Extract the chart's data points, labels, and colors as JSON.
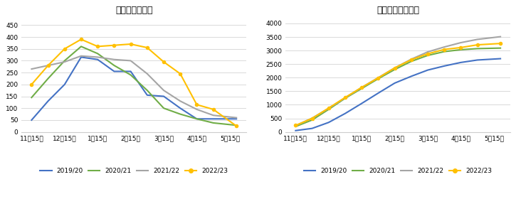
{
  "title1": "印度月度产糖量",
  "title2": "印度累计产糖进度",
  "x_labels": [
    "11月15日",
    "12月15日",
    "1月15日",
    "2月15日",
    "3月15日",
    "4月15日",
    "5月15日"
  ],
  "monthly_data": {
    "2019/20": {
      "x": [
        0,
        0.5,
        1,
        1.5,
        2,
        2.5,
        3,
        3.5,
        4,
        4.5,
        5,
        5.5,
        6.2
      ],
      "y": [
        50,
        130,
        200,
        315,
        305,
        255,
        255,
        155,
        150,
        100,
        55,
        55,
        55
      ]
    },
    "2020/21": {
      "x": [
        0,
        0.5,
        1,
        1.5,
        2,
        2.5,
        3,
        3.5,
        4,
        4.5,
        5,
        5.5,
        6.2
      ],
      "y": [
        145,
        225,
        300,
        360,
        330,
        280,
        240,
        175,
        100,
        75,
        55,
        38,
        28
      ]
    },
    "2021/22": {
      "x": [
        0,
        0.5,
        1,
        1.5,
        2,
        2.5,
        3,
        3.5,
        4,
        4.5,
        5,
        5.5,
        6.2
      ],
      "y": [
        265,
        280,
        295,
        320,
        315,
        305,
        300,
        245,
        175,
        130,
        95,
        70,
        60
      ]
    },
    "2022/23": {
      "x": [
        0,
        0.5,
        1,
        1.5,
        2,
        2.5,
        3,
        3.5,
        4,
        4.5,
        5,
        5.5,
        6.2
      ],
      "y": [
        200,
        280,
        350,
        390,
        360,
        365,
        370,
        355,
        295,
        245,
        115,
        95,
        25
      ]
    }
  },
  "cumulative_data": {
    "2019/20": {
      "x": [
        0,
        0.5,
        1,
        1.5,
        2,
        2.5,
        3,
        3.5,
        4,
        4.5,
        5,
        5.5,
        6.2
      ],
      "y": [
        50,
        130,
        350,
        680,
        1050,
        1430,
        1800,
        2050,
        2280,
        2430,
        2560,
        2650,
        2700
      ]
    },
    "2020/21": {
      "x": [
        0,
        0.5,
        1,
        1.5,
        2,
        2.5,
        3,
        3.5,
        4,
        4.5,
        5,
        5.5,
        6.2
      ],
      "y": [
        200,
        440,
        830,
        1240,
        1600,
        1960,
        2300,
        2600,
        2820,
        2960,
        3030,
        3070,
        3090
      ]
    },
    "2021/22": {
      "x": [
        0,
        0.5,
        1,
        1.5,
        2,
        2.5,
        3,
        3.5,
        4,
        4.5,
        5,
        5.5,
        6.2
      ],
      "y": [
        230,
        510,
        870,
        1260,
        1640,
        2000,
        2360,
        2680,
        2950,
        3130,
        3290,
        3410,
        3510
      ]
    },
    "2022/23": {
      "x": [
        0,
        0.5,
        1,
        1.5,
        2,
        2.5,
        3,
        3.5,
        4,
        4.5,
        5,
        5.5,
        6.2
      ],
      "y": [
        240,
        500,
        880,
        1270,
        1640,
        1990,
        2360,
        2660,
        2880,
        3040,
        3110,
        3210,
        3260
      ]
    }
  },
  "colors": {
    "2019/20": "#4472C4",
    "2020/21": "#70AD47",
    "2021/22": "#A5A5A5",
    "2022/23": "#FFC000"
  },
  "use_markers": {
    "2019/20": false,
    "2020/21": false,
    "2021/22": false,
    "2022/23": true
  },
  "ylim1": [
    0,
    480
  ],
  "yticks1": [
    0,
    50,
    100,
    150,
    200,
    250,
    300,
    350,
    400,
    450
  ],
  "ylim2": [
    0,
    4200
  ],
  "yticks2": [
    0,
    500,
    1000,
    1500,
    2000,
    2500,
    3000,
    3500,
    4000
  ],
  "seasons": [
    "2019/20",
    "2020/21",
    "2021/22",
    "2022/23"
  ],
  "bg_color": "#FFFFFF",
  "grid_color": "#D9D9D9",
  "border_color": "#CCCCCC",
  "title_fontsize": 9,
  "tick_fontsize": 6.5,
  "legend_fontsize": 6.5,
  "linewidth": 1.5,
  "markersize": 3
}
